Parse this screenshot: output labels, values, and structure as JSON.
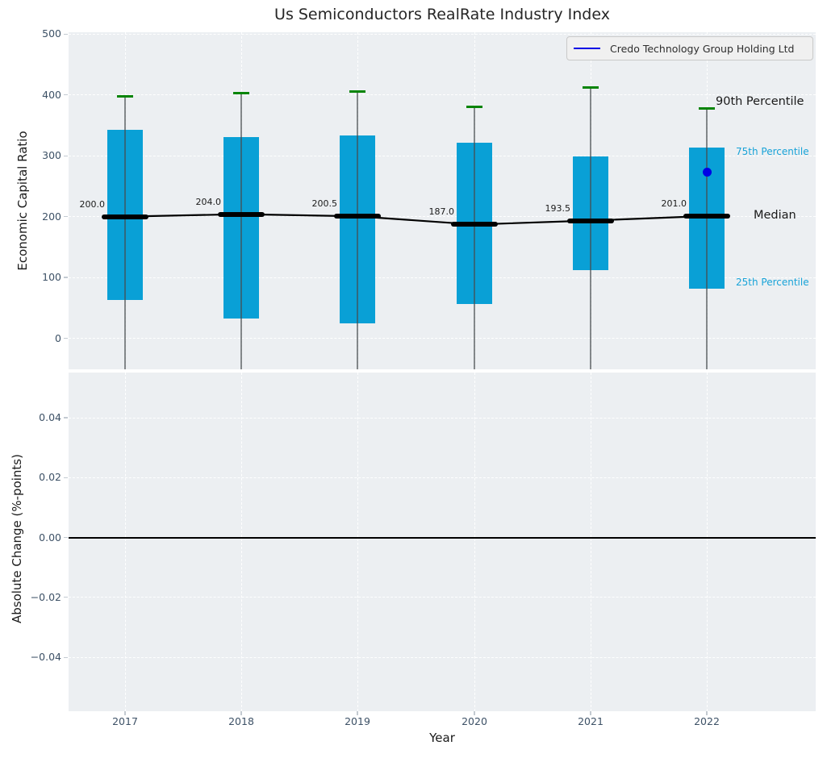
{
  "title": "Us Semiconductors RealRate Industry Index",
  "legend": {
    "label": "Credo Technology Group Holding Ltd"
  },
  "colors": {
    "box": "#09a0d6",
    "whisker": "#6f7478",
    "whisker_cap": "#058405",
    "median_line": "#000000",
    "company_point": "#0000e6",
    "legend_line": "#0000e6",
    "percentile_label_text": "#18a3d8",
    "axes_background": "#eceff2",
    "grid": "#ffffff",
    "tick_label": "#3d5166"
  },
  "chart_data": [
    {
      "type": "box",
      "ylabel": "Economic Capital Ratio",
      "categories": [
        "2017",
        "2018",
        "2019",
        "2020",
        "2021",
        "2022"
      ],
      "yticks": [
        0,
        100,
        200,
        300,
        400,
        500
      ],
      "ylim": [
        -51,
        503
      ],
      "grid": true,
      "legend_position": "upper right",
      "series": [
        {
          "name": "90th Percentile",
          "values": [
            397,
            403,
            405,
            380,
            412,
            378
          ]
        },
        {
          "name": "75th Percentile",
          "values": [
            343,
            331,
            333,
            321,
            299,
            313
          ]
        },
        {
          "name": "Median",
          "values": [
            200.0,
            204.0,
            200.5,
            187.0,
            193.5,
            201.0
          ]
        },
        {
          "name": "25th Percentile",
          "values": [
            63,
            33,
            24,
            56,
            112,
            82
          ]
        }
      ],
      "median_labels": [
        "200.0",
        "204.0",
        "200.5",
        "187.0",
        "193.5",
        "201.0"
      ],
      "whisker_low_clipped_at_axis_bottom": true,
      "company_point": {
        "name": "Credo Technology Group Holding Ltd",
        "x": "2022",
        "y": 273
      },
      "annotations": [
        "90th Percentile",
        "75th Percentile",
        "Median",
        "25th Percentile"
      ]
    },
    {
      "type": "line",
      "xlabel": "Year",
      "ylabel": "Absolute Change (%-points)",
      "categories": [
        "2017",
        "2018",
        "2019",
        "2020",
        "2021",
        "2022"
      ],
      "ytick_labels": [
        "0.04",
        "0.02",
        "0.00",
        "−0.02",
        "−0.04"
      ],
      "ytick_values": [
        0.04,
        0.02,
        0.0,
        -0.02,
        -0.04
      ],
      "ylim": [
        -0.058,
        0.0551
      ],
      "zero_line": 0.0,
      "grid": true,
      "series": []
    }
  ]
}
